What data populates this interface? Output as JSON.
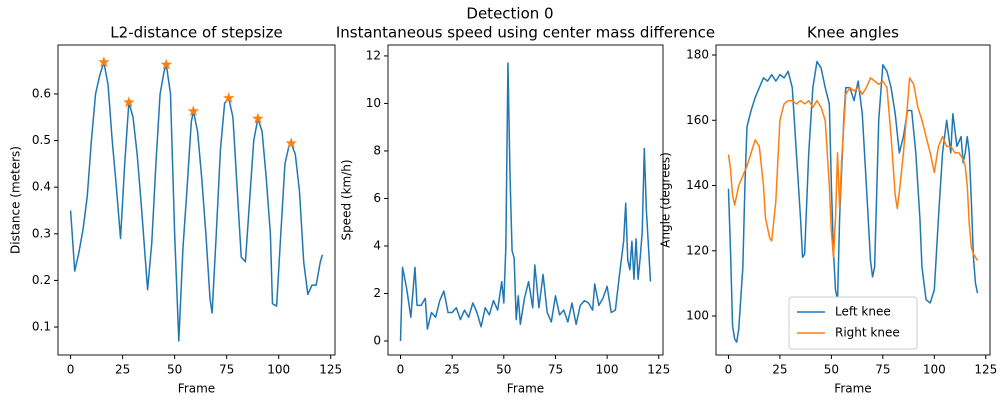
{
  "title": "Detection 0",
  "chart_data": [
    {
      "type": "line",
      "title": "L2-distance of stepsize",
      "xlabel": "Frame",
      "ylabel": "Distance (meters)",
      "xlim": [
        -6.05,
        127.05
      ],
      "ylim": [
        0.04,
        0.705
      ],
      "xticks": [
        0,
        25,
        50,
        75,
        100,
        125
      ],
      "yticks": [
        0.1,
        0.2,
        0.3,
        0.4,
        0.5,
        0.6
      ],
      "series": [
        {
          "color": "#1f77b4",
          "marker": "none",
          "x": [
            0,
            2,
            4,
            6,
            8,
            10,
            12,
            14,
            16,
            18,
            20,
            22,
            24,
            26,
            28,
            30,
            32,
            34,
            36,
            37,
            39,
            41,
            43,
            45,
            46,
            48,
            50,
            52,
            54,
            56,
            58,
            59,
            61,
            63,
            65,
            67,
            68,
            70,
            72,
            74,
            76,
            78,
            80,
            82,
            84,
            86,
            88,
            90,
            92,
            94,
            96,
            97,
            99,
            101,
            103,
            105,
            106,
            108,
            110,
            112,
            114,
            116,
            118,
            120,
            121
          ],
          "values": [
            0.35,
            0.22,
            0.26,
            0.31,
            0.38,
            0.5,
            0.6,
            0.64,
            0.668,
            0.62,
            0.5,
            0.4,
            0.29,
            0.45,
            0.582,
            0.55,
            0.47,
            0.36,
            0.24,
            0.18,
            0.28,
            0.45,
            0.6,
            0.65,
            0.663,
            0.6,
            0.3,
            0.07,
            0.27,
            0.4,
            0.54,
            0.563,
            0.52,
            0.42,
            0.3,
            0.16,
            0.13,
            0.3,
            0.48,
            0.58,
            0.591,
            0.55,
            0.4,
            0.25,
            0.24,
            0.37,
            0.5,
            0.547,
            0.52,
            0.42,
            0.3,
            0.15,
            0.145,
            0.3,
            0.45,
            0.49,
            0.494,
            0.47,
            0.39,
            0.24,
            0.17,
            0.19,
            0.19,
            0.24,
            0.255
          ]
        },
        {
          "color": "#ff7f0e",
          "marker": "star",
          "x": [
            16,
            28,
            46,
            59,
            76,
            90,
            106
          ],
          "values": [
            0.668,
            0.582,
            0.663,
            0.563,
            0.591,
            0.547,
            0.494
          ]
        }
      ]
    },
    {
      "type": "line",
      "title": "Instantaneous speed using center mass difference",
      "xlabel": "Frame",
      "ylabel": "Speed (km/h)",
      "xlim": [
        -6.05,
        127.05
      ],
      "ylim": [
        -0.59,
        12.46
      ],
      "xticks": [
        0,
        25,
        50,
        75,
        100,
        125
      ],
      "yticks": [
        0,
        2,
        4,
        6,
        8,
        10,
        12
      ],
      "series": [
        {
          "color": "#1f77b4",
          "marker": "none",
          "x": [
            0,
            1,
            3,
            5,
            7,
            8,
            10,
            12,
            13,
            15,
            17,
            19,
            21,
            23,
            25,
            27,
            29,
            31,
            33,
            35,
            37,
            39,
            41,
            43,
            45,
            47,
            49,
            50,
            51,
            52,
            53,
            54,
            55,
            56,
            57,
            58,
            60,
            62,
            64,
            65,
            67,
            69,
            71,
            73,
            75,
            77,
            79,
            81,
            83,
            85,
            87,
            89,
            91,
            93,
            94,
            96,
            98,
            100,
            102,
            104,
            106,
            108,
            109,
            110,
            111,
            112,
            113,
            114,
            115,
            116,
            117,
            118,
            119,
            121
          ],
          "values": [
            0,
            3.1,
            2.2,
            1,
            3.1,
            1.5,
            1.5,
            1.8,
            0.5,
            1.2,
            1,
            1.7,
            2.1,
            1.2,
            1.2,
            1.4,
            0.9,
            1.3,
            1,
            1.6,
            1.2,
            0.6,
            1.4,
            1.1,
            1.7,
            1.3,
            2.5,
            1.6,
            4,
            11.7,
            7,
            3.8,
            3.5,
            0.9,
            1.9,
            0.7,
            1.8,
            2.5,
            1.4,
            3.2,
            1.4,
            2.8,
            1.2,
            0.8,
            1.9,
            1.1,
            1.3,
            0.8,
            1.6,
            0.7,
            1.5,
            1.7,
            1.6,
            1.3,
            2.4,
            1.5,
            1.8,
            2.3,
            1.2,
            1.3,
            2.8,
            4.2,
            5.8,
            3.4,
            3,
            4.2,
            2.6,
            4.3,
            2.6,
            3.5,
            4.6,
            8.1,
            5.5,
            2.5
          ]
        }
      ]
    },
    {
      "type": "line",
      "title": "Knee angles",
      "xlabel": "Frame",
      "ylabel": "Angle (degrees)",
      "xlim": [
        -6.05,
        127.05
      ],
      "ylim": [
        88.05,
        183.07
      ],
      "xticks": [
        0,
        25,
        50,
        75,
        100,
        125
      ],
      "yticks": [
        100,
        120,
        140,
        160,
        180
      ],
      "legend": "lower center",
      "series": [
        {
          "name": "Left knee",
          "color": "#1f77b4",
          "marker": "none",
          "x": [
            0,
            1,
            2,
            3,
            4,
            5,
            7,
            8,
            9,
            11,
            13,
            15,
            17,
            19,
            21,
            23,
            25,
            27,
            29,
            31,
            33,
            35,
            36,
            37,
            39,
            41,
            43,
            45,
            47,
            49,
            50,
            51,
            52,
            53,
            54,
            56,
            57,
            59,
            61,
            63,
            65,
            67,
            69,
            70,
            71,
            73,
            75,
            77,
            79,
            81,
            83,
            85,
            87,
            89,
            91,
            93,
            94,
            96,
            98,
            100,
            102,
            104,
            106,
            108,
            109,
            111,
            113,
            114,
            115,
            116,
            117,
            118,
            119,
            120,
            121
          ],
          "values": [
            139,
            120,
            97,
            93,
            92,
            96,
            115,
            140,
            158,
            163,
            167,
            170,
            173,
            172,
            174,
            172,
            174,
            173,
            175,
            170,
            150,
            130,
            118,
            119,
            150,
            170,
            178,
            176,
            170,
            165,
            140,
            120,
            108,
            105,
            130,
            160,
            170,
            170,
            166,
            172,
            162,
            140,
            117,
            112,
            115,
            160,
            177,
            175,
            170,
            162,
            150,
            155,
            163,
            163,
            150,
            130,
            115,
            105,
            104,
            108,
            130,
            150,
            160,
            150,
            162,
            152,
            155,
            147,
            150,
            155,
            150,
            135,
            118,
            110,
            107
          ]
        },
        {
          "name": "Right knee",
          "color": "#ff7f0e",
          "marker": "none",
          "x": [
            0,
            1,
            2,
            3,
            4,
            5,
            7,
            9,
            11,
            13,
            15,
            17,
            18,
            20,
            21,
            23,
            25,
            27,
            29,
            31,
            33,
            35,
            37,
            39,
            41,
            43,
            45,
            47,
            49,
            50,
            51,
            52,
            53,
            54,
            55,
            57,
            59,
            61,
            63,
            65,
            67,
            69,
            71,
            73,
            75,
            77,
            79,
            81,
            82,
            83,
            85,
            87,
            88,
            90,
            92,
            94,
            96,
            98,
            100,
            102,
            104,
            106,
            108,
            110,
            112,
            114,
            115,
            116,
            117,
            118,
            119,
            120,
            121
          ],
          "values": [
            149.5,
            145,
            137,
            134,
            137,
            140,
            143,
            146,
            150,
            154,
            152,
            140,
            130,
            124,
            123,
            135,
            160,
            165,
            166,
            166,
            165,
            166,
            165,
            166,
            164,
            166,
            164,
            160,
            140,
            126,
            118,
            130,
            150,
            133,
            148,
            168,
            170,
            169,
            170,
            168,
            170,
            173,
            172,
            171,
            172,
            170,
            155,
            137,
            133,
            138,
            150,
            165,
            173,
            171,
            164,
            160,
            155,
            150,
            144,
            152,
            155,
            152,
            152,
            150,
            150,
            148,
            146,
            140,
            128,
            121,
            119,
            118,
            117
          ]
        }
      ]
    }
  ]
}
